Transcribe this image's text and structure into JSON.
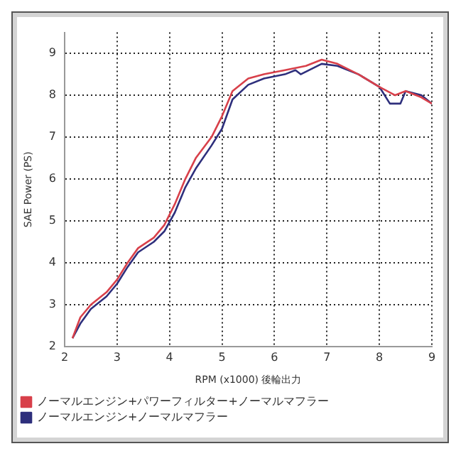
{
  "chart_data": {
    "type": "line",
    "xlabel": "RPM (x1000) 後輪出力",
    "ylabel": "SAE Power (PS)",
    "xlim": [
      2,
      9
    ],
    "xticks": [
      2,
      3,
      4,
      5,
      6,
      7,
      8,
      9
    ],
    "ylim": [
      2,
      9.5
    ],
    "yticks": [
      2,
      3,
      4,
      5,
      6,
      7,
      8,
      9
    ],
    "grid": true,
    "legend": "bottom",
    "marker": "none",
    "line_style": "solid",
    "series": [
      {
        "name": "ノーマルエンジン+パワーフィルター+ノーマルマフラー",
        "color": "#d8404a",
        "x": [
          2.15,
          2.3,
          2.5,
          2.8,
          3.0,
          3.2,
          3.4,
          3.7,
          3.9,
          4.1,
          4.3,
          4.5,
          4.8,
          5.0,
          5.2,
          5.5,
          5.8,
          6.2,
          6.6,
          6.9,
          7.2,
          7.6,
          8.0,
          8.3,
          8.5,
          8.8,
          9.0
        ],
        "values": [
          2.2,
          2.7,
          3.0,
          3.3,
          3.6,
          4.0,
          4.35,
          4.6,
          4.9,
          5.4,
          6.0,
          6.5,
          7.0,
          7.5,
          8.1,
          8.4,
          8.5,
          8.6,
          8.7,
          8.85,
          8.75,
          8.5,
          8.2,
          8.0,
          8.1,
          7.95,
          7.8
        ]
      },
      {
        "name": "ノーマルエンジン+ノーマルマフラー",
        "color": "#2e2f7c",
        "x": [
          2.15,
          2.3,
          2.5,
          2.8,
          3.0,
          3.2,
          3.4,
          3.7,
          3.9,
          4.1,
          4.3,
          4.5,
          4.8,
          5.0,
          5.2,
          5.5,
          5.8,
          6.2,
          6.4,
          6.5,
          6.9,
          7.2,
          7.6,
          8.0,
          8.2,
          8.4,
          8.5,
          8.8,
          9.0
        ],
        "values": [
          2.2,
          2.55,
          2.9,
          3.2,
          3.5,
          3.9,
          4.25,
          4.5,
          4.75,
          5.2,
          5.8,
          6.25,
          6.8,
          7.2,
          7.9,
          8.25,
          8.4,
          8.5,
          8.6,
          8.5,
          8.75,
          8.7,
          8.5,
          8.2,
          7.8,
          7.8,
          8.1,
          8.0,
          7.8
        ]
      }
    ]
  }
}
